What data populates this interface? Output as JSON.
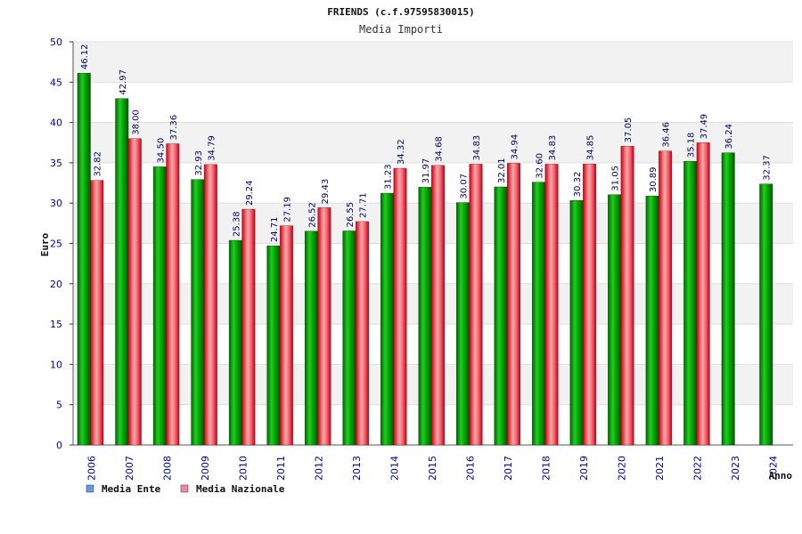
{
  "chart_data": {
    "type": "bar",
    "title": "FRIENDS (c.f.97595830015)",
    "subtitle": "Media Importi",
    "ylabel": "Euro",
    "xlabel": "Anno",
    "ylim": [
      0,
      50
    ],
    "yticks": [
      0,
      5,
      10,
      15,
      20,
      25,
      30,
      35,
      40,
      45,
      50
    ],
    "grid": true,
    "legend_position": "bottom-left",
    "categories": [
      "2006",
      "2007",
      "2008",
      "2009",
      "2010",
      "2011",
      "2012",
      "2013",
      "2014",
      "2015",
      "2016",
      "2017",
      "2018",
      "2019",
      "2020",
      "2021",
      "2022",
      "2023",
      "2024"
    ],
    "series": [
      {
        "name": "Media Ente",
        "color": "#00aa00",
        "legend_color": "#6699ee",
        "values": [
          46.12,
          42.97,
          34.5,
          32.93,
          25.38,
          24.71,
          26.52,
          26.55,
          31.23,
          31.97,
          30.07,
          32.01,
          32.6,
          30.32,
          31.05,
          30.89,
          35.18,
          36.24,
          32.37
        ],
        "labels": [
          "46.12",
          "42.97",
          "34.50",
          "32.93",
          "25.38",
          "24.71",
          "26.52",
          "26.55",
          "31.23",
          "31.97",
          "30.07",
          "32.01",
          "32.60",
          "30.32",
          "31.05",
          "30.89",
          "35.18",
          "36.24",
          "32.37"
        ]
      },
      {
        "name": "Media Nazionale",
        "color": "#ee2233",
        "legend_color": "#ee88aa",
        "values": [
          32.82,
          38.0,
          37.36,
          34.79,
          29.24,
          27.19,
          29.43,
          27.71,
          34.32,
          34.68,
          34.83,
          34.94,
          34.83,
          34.85,
          37.05,
          36.46,
          37.49,
          null,
          null
        ],
        "labels": [
          "32.82",
          "38.00",
          "37.36",
          "34.79",
          "29.24",
          "27.19",
          "29.43",
          "27.71",
          "34.32",
          "34.68",
          "34.83",
          "34.94",
          "34.83",
          "34.85",
          "37.05",
          "36.46",
          "37.49",
          null,
          null
        ]
      }
    ]
  }
}
